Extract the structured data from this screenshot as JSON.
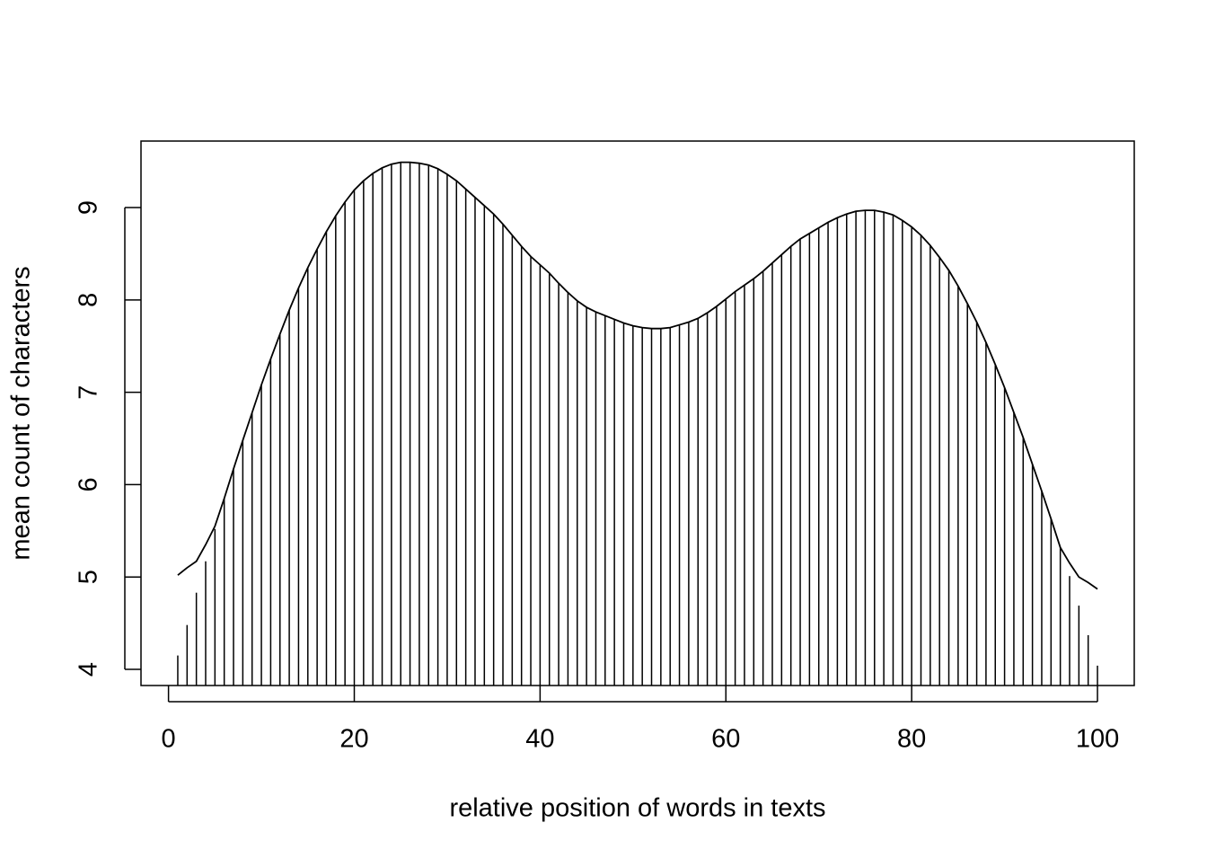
{
  "chart_data": {
    "type": "line",
    "x_label": "relative position of words in texts",
    "y_label": "mean count of characters",
    "x": [
      1,
      2,
      3,
      4,
      5,
      6,
      7,
      8,
      9,
      10,
      11,
      12,
      13,
      14,
      15,
      16,
      17,
      18,
      19,
      20,
      21,
      22,
      23,
      24,
      25,
      26,
      27,
      28,
      29,
      30,
      31,
      32,
      33,
      34,
      35,
      36,
      37,
      38,
      39,
      40,
      41,
      42,
      43,
      44,
      45,
      46,
      47,
      48,
      49,
      50,
      51,
      52,
      53,
      54,
      55,
      56,
      57,
      58,
      59,
      60,
      61,
      62,
      63,
      64,
      65,
      66,
      67,
      68,
      69,
      70,
      71,
      72,
      73,
      74,
      75,
      76,
      77,
      78,
      79,
      80,
      81,
      82,
      83,
      84,
      85,
      86,
      87,
      88,
      89,
      90,
      91,
      92,
      93,
      94,
      95,
      96,
      97,
      98,
      99,
      100
    ],
    "series": [
      {
        "type": "spikes",
        "color": "#000000",
        "values": [
          4.15,
          4.48,
          4.83,
          5.17,
          5.52,
          5.85,
          6.17,
          6.48,
          6.78,
          7.08,
          7.36,
          7.63,
          7.89,
          8.13,
          8.35,
          8.55,
          8.74,
          8.91,
          9.06,
          9.19,
          9.29,
          9.37,
          9.43,
          9.47,
          9.49,
          9.49,
          9.48,
          9.46,
          9.42,
          9.36,
          9.29,
          9.2,
          9.11,
          9.02,
          8.93,
          8.82,
          8.7,
          8.58,
          8.47,
          8.38,
          8.29,
          8.18,
          8.08,
          7.99,
          7.92,
          7.87,
          7.83,
          7.79,
          7.75,
          7.72,
          7.7,
          7.69,
          7.69,
          7.7,
          7.73,
          7.76,
          7.8,
          7.86,
          7.93,
          8.01,
          8.09,
          8.16,
          8.23,
          8.31,
          8.4,
          8.49,
          8.58,
          8.66,
          8.72,
          8.78,
          8.84,
          8.89,
          8.93,
          8.96,
          8.97,
          8.97,
          8.95,
          8.92,
          8.86,
          8.79,
          8.7,
          8.59,
          8.46,
          8.32,
          8.15,
          7.96,
          7.76,
          7.54,
          7.3,
          7.05,
          6.78,
          6.51,
          6.22,
          5.93,
          5.63,
          5.32,
          5.01,
          4.69,
          4.37,
          4.04
        ]
      },
      {
        "type": "line",
        "color": "#000000",
        "values": [
          5.02,
          5.1,
          5.17,
          5.35,
          5.55,
          5.85,
          6.17,
          6.48,
          6.78,
          7.08,
          7.36,
          7.63,
          7.89,
          8.13,
          8.35,
          8.55,
          8.74,
          8.91,
          9.06,
          9.19,
          9.29,
          9.37,
          9.43,
          9.47,
          9.49,
          9.49,
          9.48,
          9.46,
          9.42,
          9.36,
          9.29,
          9.2,
          9.11,
          9.02,
          8.93,
          8.82,
          8.7,
          8.58,
          8.47,
          8.38,
          8.29,
          8.18,
          8.08,
          7.99,
          7.92,
          7.87,
          7.83,
          7.79,
          7.75,
          7.72,
          7.7,
          7.69,
          7.69,
          7.7,
          7.73,
          7.76,
          7.8,
          7.86,
          7.93,
          8.01,
          8.09,
          8.16,
          8.23,
          8.31,
          8.4,
          8.49,
          8.58,
          8.66,
          8.72,
          8.78,
          8.84,
          8.89,
          8.93,
          8.96,
          8.97,
          8.97,
          8.95,
          8.92,
          8.86,
          8.79,
          8.7,
          8.59,
          8.46,
          8.32,
          8.15,
          7.96,
          7.76,
          7.54,
          7.3,
          7.05,
          6.78,
          6.51,
          6.22,
          5.93,
          5.63,
          5.32,
          5.15,
          5.0,
          4.94,
          4.87
        ]
      }
    ],
    "xlim": [
      -2.96,
      103.96
    ],
    "xticks": [
      0,
      20,
      40,
      60,
      80,
      100
    ],
    "ylim": [
      3.825,
      9.72
    ],
    "yticks": [
      4,
      5,
      6,
      7,
      8,
      9
    ]
  }
}
